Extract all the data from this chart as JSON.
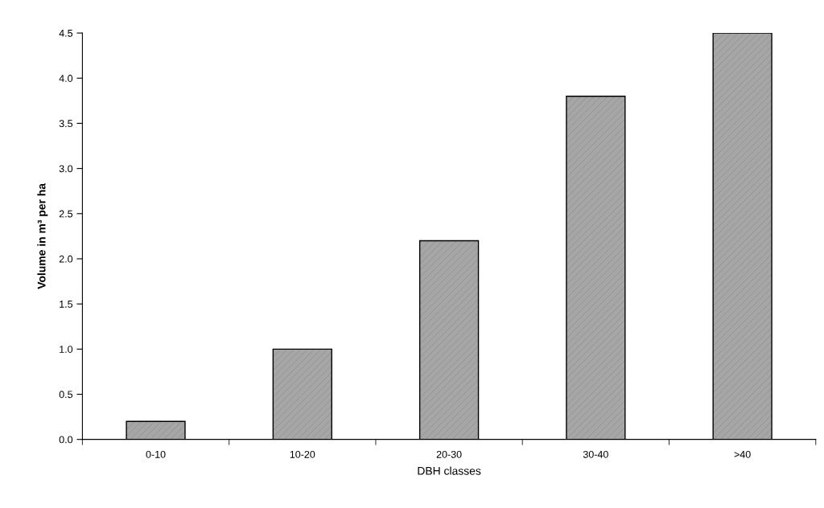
{
  "chart_data": {
    "type": "bar",
    "xlabel": "DBH classes",
    "ylabel": "Volume in m³ per ha",
    "categories": [
      "0-10",
      "10-20",
      "20-30",
      "30-40",
      ">40"
    ],
    "values": [
      0.2,
      1.0,
      2.2,
      3.8,
      4.5
    ],
    "color": "#a6a6a6",
    "ylim": [
      0,
      4.5
    ],
    "yticks": [
      {
        "value": 0,
        "label": "0.0"
      },
      {
        "value": 0.5,
        "label": "0.5"
      },
      {
        "value": 1,
        "label": "1.0"
      },
      {
        "value": 1.5,
        "label": "1.5"
      },
      {
        "value": 2,
        "label": "2.0"
      },
      {
        "value": 2.5,
        "label": "2.5"
      },
      {
        "value": 3,
        "label": "3.0"
      },
      {
        "value": 3.5,
        "label": "3.5"
      },
      {
        "value": 4,
        "label": "4.0"
      },
      {
        "value": 4.5,
        "label": "4.5"
      }
    ],
    "grid": false,
    "legend": false
  }
}
